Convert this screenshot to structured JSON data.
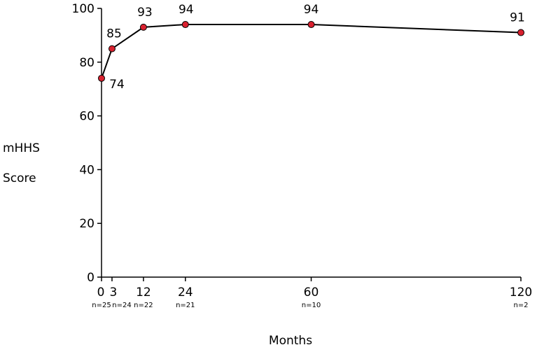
{
  "chart_data": {
    "type": "line",
    "xlabel": "Months",
    "ylabel": [
      "mHHS",
      "Score"
    ],
    "x": [
      0,
      3,
      12,
      24,
      60,
      120
    ],
    "x_tick_labels": [
      "0",
      "3",
      "12",
      "24",
      "60",
      "120"
    ],
    "n_labels": [
      "n=25",
      "n=24",
      "n=22",
      "n=21",
      "n=10",
      "n=2"
    ],
    "series": [
      {
        "values": [
          74,
          85,
          93,
          94,
          94,
          91
        ],
        "data_labels": [
          "74",
          "85",
          "93",
          "94",
          "94",
          "91"
        ]
      }
    ],
    "ylim": [
      0,
      100
    ],
    "y_ticks": [
      0,
      20,
      40,
      60,
      80,
      100
    ],
    "grid": false,
    "colors": {
      "line": "#000000",
      "marker_fill": "#d9212f",
      "marker_stroke": "#000000"
    }
  }
}
